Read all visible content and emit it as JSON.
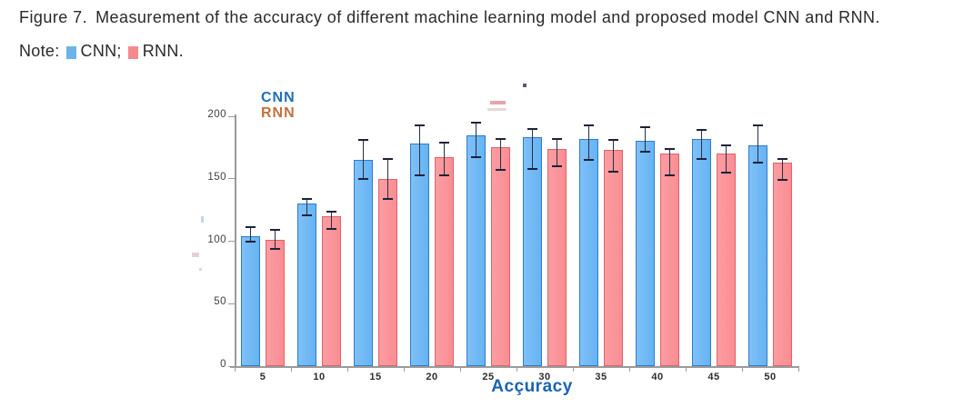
{
  "caption": {
    "figure_label": "Figure 7.",
    "text": "Measurement of the accuracy of different machine learning model and proposed model CNN and RNN.",
    "note_label": "Note:",
    "note_items": [
      {
        "label": "CNN;",
        "color": "#6cb3ea"
      },
      {
        "label": "RNN.",
        "color": "#f6898e"
      }
    ]
  },
  "chart_data": {
    "type": "bar",
    "title": "",
    "xlabel": "Acçuracy",
    "ylabel": "",
    "xlabel_color": "#1a64b0",
    "categories": [
      "5",
      "10",
      "15",
      "20",
      "25",
      "30",
      "35",
      "40",
      "45",
      "50"
    ],
    "y_ticks": [
      0,
      50,
      100,
      150,
      200
    ],
    "ylim": [
      0,
      200
    ],
    "grid": false,
    "error_bars": true,
    "legend": {
      "position": "top-left",
      "entries": [
        {
          "name": "CNN",
          "color": "#1e6fb8"
        },
        {
          "name": "RNN",
          "color": "#c3713c"
        }
      ]
    },
    "series": [
      {
        "name": "CNN",
        "fill": "#66b3f3",
        "fill_light": "#7fc0f7",
        "border": "#2e7cc9",
        "values": [
          104,
          130,
          165,
          178,
          185,
          183,
          182,
          180,
          182,
          177
        ],
        "err_low": [
          100,
          121,
          150,
          153,
          167,
          158,
          165,
          172,
          166,
          163
        ],
        "err_high": [
          111,
          134,
          181,
          193,
          195,
          190,
          193,
          191,
          189,
          193
        ]
      },
      {
        "name": "RNN",
        "fill": "#f98d92",
        "fill_light": "#fb9da2",
        "border": "#dd636d",
        "values": [
          101,
          120,
          150,
          167,
          175,
          174,
          173,
          170,
          170,
          163
        ],
        "err_low": [
          94,
          110,
          134,
          153,
          157,
          160,
          156,
          153,
          155,
          149
        ],
        "err_high": [
          109,
          124,
          166,
          179,
          182,
          182,
          181,
          174,
          177,
          166
        ]
      }
    ]
  }
}
